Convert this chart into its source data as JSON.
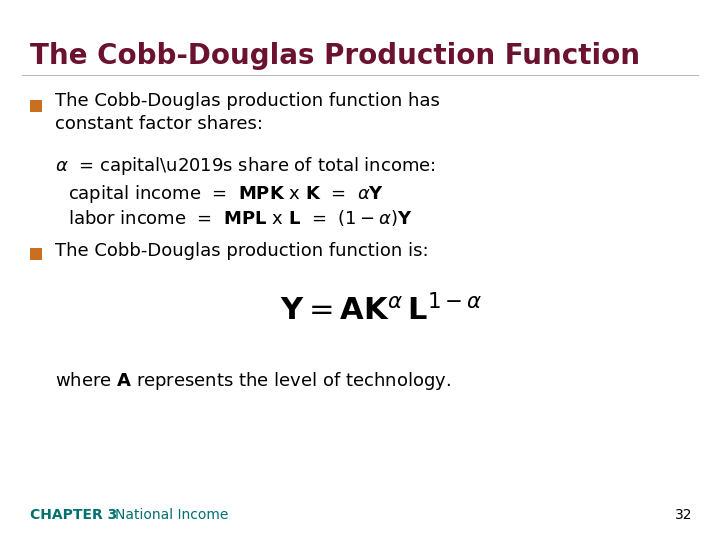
{
  "bg_color": "#ffffff",
  "title": "The Cobb-Douglas Production Function",
  "title_color": "#6B1230",
  "title_fontsize": 20,
  "bullet_color": "#C87020",
  "body_color": "#000000",
  "footer_chapter": "CHAPTER 3",
  "footer_text": "National Income",
  "footer_page": "32",
  "footer_color": "#007070",
  "footer_fontsize": 10,
  "body_fontsize": 13,
  "formula_fontsize": 22
}
